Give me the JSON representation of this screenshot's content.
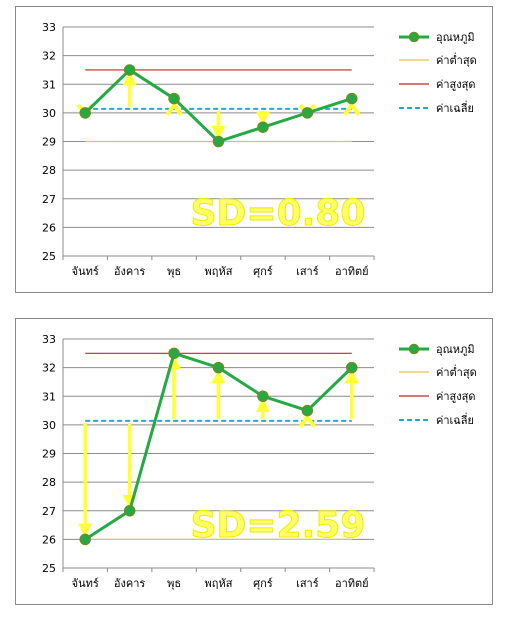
{
  "chart_data": [
    {
      "type": "line",
      "categories": [
        "จันทร์",
        "อังคาร",
        "พุธ",
        "พฤหัส",
        "ศุกร์",
        "เสาร์",
        "อาทิตย์"
      ],
      "ylim": [
        25,
        33
      ],
      "yticks": [
        25,
        26,
        27,
        28,
        29,
        30,
        31,
        32,
        33
      ],
      "series": [
        {
          "name": "อุณหภูมิ",
          "values": [
            30,
            31.5,
            30.5,
            29,
            29.5,
            30,
            30.5
          ],
          "color": "#22aa44"
        },
        {
          "name": "ค่าต่ำสุด",
          "values": [
            29,
            29,
            29,
            29,
            29,
            29,
            29
          ],
          "color": "#e6c34a"
        },
        {
          "name": "ค่าสูงสุด",
          "values": [
            31.5,
            31.5,
            31.5,
            31.5,
            31.5,
            31.5,
            31.5
          ],
          "color": "#cc2222"
        },
        {
          "name": "ค่าเฉลี่ย",
          "values": [
            30.14,
            30.14,
            30.14,
            30.14,
            30.14,
            30.14,
            30.14
          ],
          "color": "#2aa6c9"
        }
      ],
      "annotation": "SD=0.80",
      "grid": true,
      "legend": "right"
    },
    {
      "type": "line",
      "categories": [
        "จันทร์",
        "อังคาร",
        "พุธ",
        "พฤหัส",
        "ศุกร์",
        "เสาร์",
        "อาทิตย์"
      ],
      "ylim": [
        25,
        33
      ],
      "yticks": [
        25,
        26,
        27,
        28,
        29,
        30,
        31,
        32,
        33
      ],
      "series": [
        {
          "name": "อุณหภูมิ",
          "values": [
            26,
            27,
            32.5,
            32,
            31,
            30.5,
            32
          ],
          "color": "#22aa44"
        },
        {
          "name": "ค่าต่ำสุด",
          "values": [
            26,
            26,
            26,
            26,
            26,
            26,
            26
          ],
          "color": "#e6c34a"
        },
        {
          "name": "ค่าสูงสุด",
          "values": [
            32.5,
            32.5,
            32.5,
            32.5,
            32.5,
            32.5,
            32.5
          ],
          "color": "#cc2222"
        },
        {
          "name": "ค่าเฉลี่ย",
          "values": [
            30.14,
            30.14,
            30.14,
            30.14,
            30.14,
            30.14,
            30.14
          ],
          "color": "#2aa6c9"
        }
      ],
      "annotation": "SD=2.59",
      "grid": true,
      "legend": "right"
    }
  ]
}
